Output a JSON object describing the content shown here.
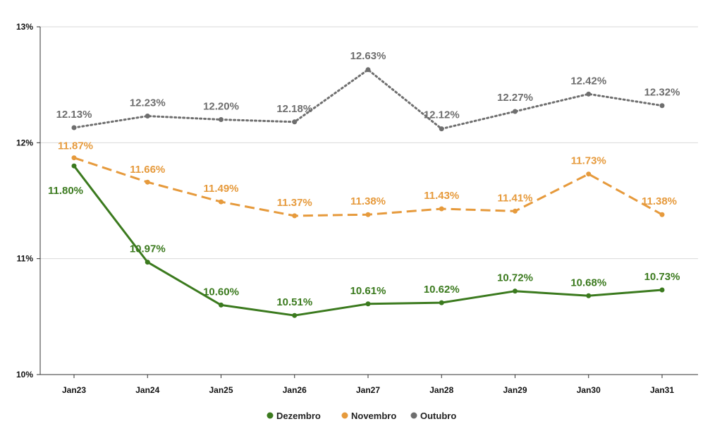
{
  "chart_data": {
    "type": "line",
    "title": "",
    "xlabel": "",
    "ylabel": "",
    "categories": [
      "Jan23",
      "Jan24",
      "Jan25",
      "Jan26",
      "Jan27",
      "Jan28",
      "Jan29",
      "Jan30",
      "Jan31"
    ],
    "ylim": [
      10,
      13
    ],
    "yticks": [
      "10%",
      "11%",
      "12%",
      "13%"
    ],
    "grid": true,
    "legend_position": "bottom",
    "series": [
      {
        "name": "Dezembro",
        "color": "#3b7a1e",
        "style": "solid",
        "values": [
          11.8,
          10.97,
          10.6,
          10.51,
          10.61,
          10.62,
          10.72,
          10.68,
          10.73
        ],
        "labels": [
          "11.80%",
          "10.97%",
          "10.60%",
          "10.51%",
          "10.61%",
          "10.62%",
          "10.72%",
          "10.68%",
          "10.73%"
        ]
      },
      {
        "name": "Novembro",
        "color": "#e69a3c",
        "style": "dashed",
        "values": [
          11.87,
          11.66,
          11.49,
          11.37,
          11.38,
          11.43,
          11.41,
          11.73,
          11.38
        ],
        "labels": [
          "11.87%",
          "11.66%",
          "11.49%",
          "11.37%",
          "11.38%",
          "11.43%",
          "11.41%",
          "11.73%",
          "11.38%"
        ]
      },
      {
        "name": "Outubro",
        "color": "#6e6e6e",
        "style": "dotted",
        "values": [
          12.13,
          12.23,
          12.2,
          12.18,
          12.63,
          12.12,
          12.27,
          12.42,
          12.32
        ],
        "labels": [
          "12.13%",
          "12.23%",
          "12.20%",
          "12.18%",
          "12.63%",
          "12.12%",
          "12.27%",
          "12.42%",
          "12.32%"
        ]
      }
    ]
  }
}
